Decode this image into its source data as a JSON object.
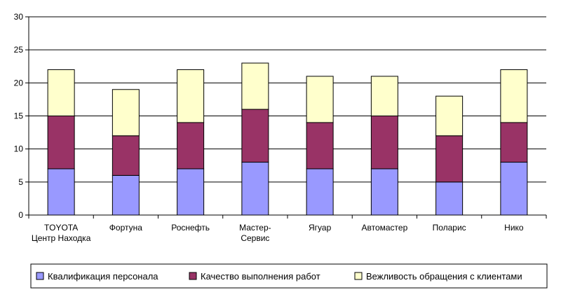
{
  "chart_data": {
    "type": "bar",
    "stacked": true,
    "categories": [
      [
        "TOYOTA",
        "Центр Находка"
      ],
      [
        "Фортуна"
      ],
      [
        "Роснефть"
      ],
      [
        "Мастер-",
        "Сервис"
      ],
      [
        "Ягуар"
      ],
      [
        "Автомастер"
      ],
      [
        "Поларис"
      ],
      [
        "Нико"
      ]
    ],
    "series": [
      {
        "name": "Квалификация персонала",
        "color": "#9999ff",
        "values": [
          7,
          6,
          7,
          8,
          7,
          7,
          5,
          8
        ]
      },
      {
        "name": "Качество выполнения работ",
        "color": "#993366",
        "values": [
          8,
          6,
          7,
          8,
          7,
          8,
          7,
          6
        ]
      },
      {
        "name": "Вежливость обращения с клиентами",
        "color": "#ffffcc",
        "values": [
          7,
          7,
          8,
          7,
          7,
          6,
          6,
          8
        ]
      }
    ],
    "ylim": [
      0,
      30
    ],
    "yticks": [
      "0",
      "5",
      "10",
      "15",
      "20",
      "25",
      "30"
    ],
    "grid": true,
    "legend_position": "bottom"
  }
}
